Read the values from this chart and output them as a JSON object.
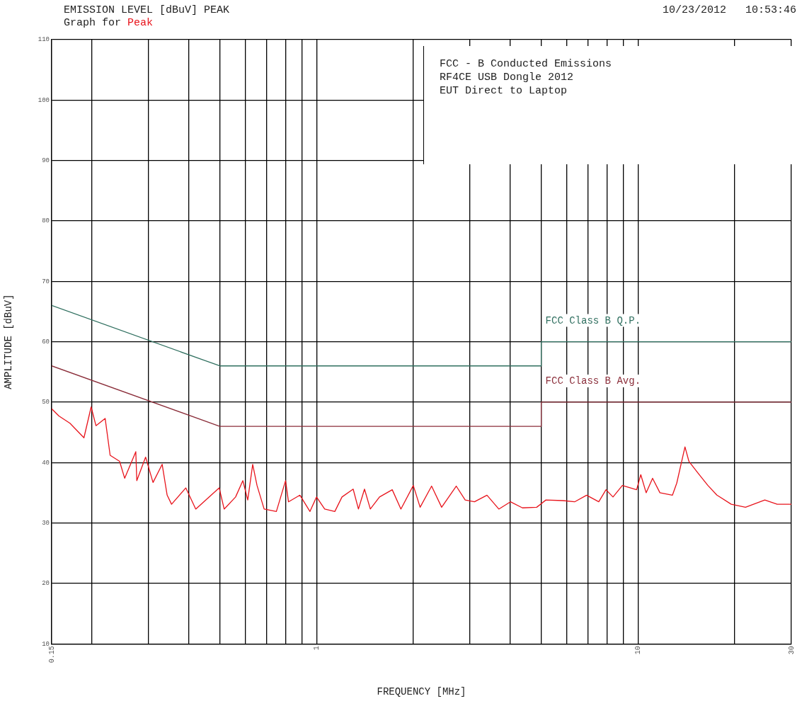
{
  "chart_data": {
    "type": "line",
    "title": "EMISSION LEVEL [dBuV] PEAK",
    "subtitle": "Graph for",
    "xlabel": "FREQUENCY [MHz]",
    "ylabel": "AMPLITUDE [dBuV]",
    "annotations": [
      "10/23/2012   10:53:46",
      "FCC - B Conducted Emissions",
      "RF4CE USB Dongle 2012",
      "EUT Direct to Laptop"
    ],
    "log": "x",
    "grid": true,
    "legend": false,
    "marker": "none",
    "line_style": "solid",
    "xlim": [
      0.15,
      30
    ],
    "ylim": [
      10,
      110
    ],
    "xticks": [
      {
        "value": 0.15,
        "label": "0.15"
      },
      {
        "value": 0.2,
        "label": null
      },
      {
        "value": 0.3,
        "label": null
      },
      {
        "value": 0.4,
        "label": null
      },
      {
        "value": 0.5,
        "label": null
      },
      {
        "value": 0.6,
        "label": null
      },
      {
        "value": 0.7,
        "label": null
      },
      {
        "value": 0.8,
        "label": null
      },
      {
        "value": 0.9,
        "label": null
      },
      1,
      {
        "value": 2,
        "label": null
      },
      {
        "value": 3,
        "label": null
      },
      {
        "value": 4,
        "label": null
      },
      {
        "value": 5,
        "label": null
      },
      {
        "value": 6,
        "label": null
      },
      {
        "value": 7,
        "label": null
      },
      {
        "value": 8,
        "label": null
      },
      {
        "value": 9,
        "label": null
      },
      10,
      {
        "value": 20,
        "label": null
      },
      30
    ],
    "yticks": [
      10,
      20,
      30,
      40,
      50,
      60,
      70,
      80,
      90,
      100,
      110
    ],
    "series": [
      {
        "name": "FCC Class B Q.P.",
        "color": "#2f6f5f",
        "x": [
          0.15,
          0.5,
          5,
          5,
          30
        ],
        "values": [
          66,
          56,
          56,
          60,
          60
        ]
      },
      {
        "name": "FCC Class B Avg.",
        "color": "#8b2e3a",
        "x": [
          0.15,
          0.5,
          5,
          5,
          30
        ],
        "values": [
          56,
          46,
          46,
          50,
          50
        ]
      },
      {
        "name": "Peak",
        "color": "#e8141c",
        "x": [
          0.15,
          0.158,
          0.171,
          0.189,
          0.199,
          0.206,
          0.22,
          0.228,
          0.244,
          0.253,
          0.274,
          0.276,
          0.294,
          0.31,
          0.331,
          0.343,
          0.354,
          0.392,
          0.421,
          0.498,
          0.516,
          0.56,
          0.59,
          0.611,
          0.633,
          0.653,
          0.687,
          0.75,
          0.801,
          0.818,
          0.888,
          0.954,
          1.0,
          1.06,
          1.14,
          1.2,
          1.3,
          1.35,
          1.41,
          1.47,
          1.57,
          1.72,
          1.83,
          2.0,
          2.1,
          2.28,
          2.45,
          2.72,
          2.9,
          3.1,
          3.39,
          3.69,
          4.01,
          4.37,
          4.84,
          5.17,
          5.85,
          6.35,
          6.92,
          7.55,
          7.95,
          8.36,
          8.94,
          9.9,
          10.2,
          10.6,
          11.1,
          11.7,
          12.8,
          13.2,
          14.0,
          14.4,
          15.4,
          16.5,
          17.6,
          19.5,
          21.6,
          24.8,
          27.1,
          30
        ],
        "values": [
          48.9,
          47.7,
          46.5,
          44.1,
          49.2,
          46.1,
          47.3,
          41.2,
          40.2,
          37.4,
          41.8,
          37.0,
          40.9,
          36.7,
          39.7,
          34.6,
          33.1,
          35.8,
          32.3,
          35.8,
          32.3,
          34.3,
          37.0,
          33.8,
          39.7,
          36.2,
          32.3,
          31.9,
          37.0,
          33.5,
          34.6,
          31.9,
          34.3,
          32.3,
          31.9,
          34.3,
          35.6,
          32.3,
          35.6,
          32.3,
          34.3,
          35.5,
          32.3,
          36.2,
          32.6,
          36.1,
          32.6,
          36.1,
          33.8,
          33.5,
          34.6,
          32.3,
          33.5,
          32.5,
          32.6,
          33.8,
          33.7,
          33.5,
          34.6,
          33.5,
          35.5,
          34.3,
          36.2,
          35.5,
          38.0,
          35.0,
          37.4,
          35.0,
          34.6,
          36.6,
          42.6,
          40.2,
          38.2,
          36.2,
          34.6,
          33.1,
          32.6,
          33.8,
          33.1,
          33.1
        ]
      }
    ]
  }
}
